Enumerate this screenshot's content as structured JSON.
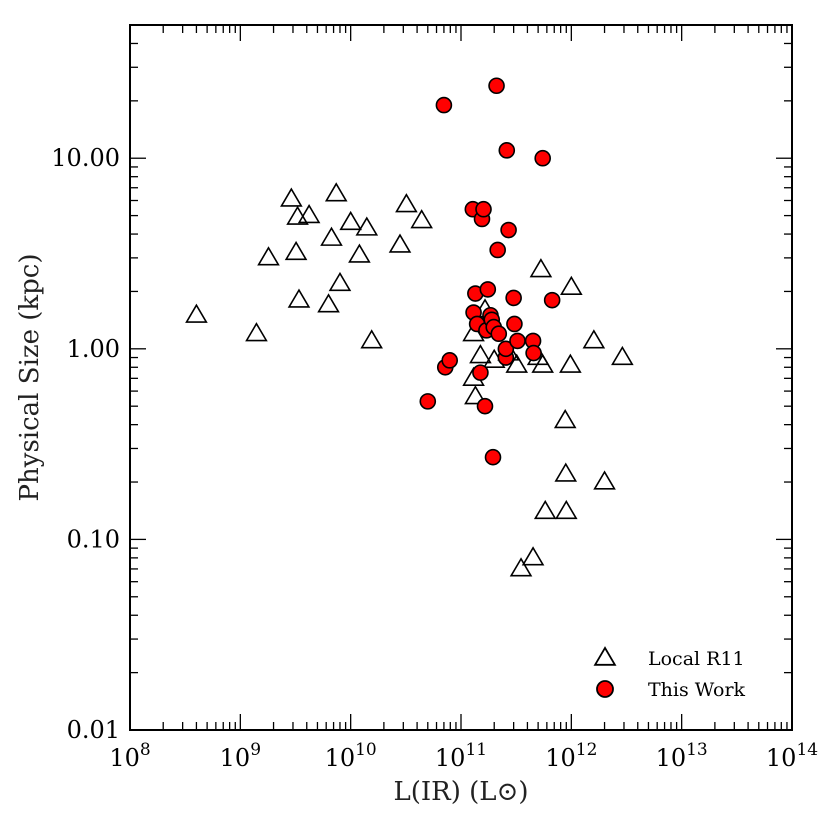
{
  "chart_data": {
    "type": "scatter",
    "title": "",
    "xlabel": "L(IR) (L⊙)",
    "ylabel": "Physical Size (kpc)",
    "xscale": "log",
    "yscale": "log",
    "xlim": [
      100000000.0,
      100000000000000.0
    ],
    "ylim": [
      0.01,
      50
    ],
    "x_ticks": [
      {
        "value": 100000000.0,
        "base": "10",
        "exp": "8"
      },
      {
        "value": 1000000000.0,
        "base": "10",
        "exp": "9"
      },
      {
        "value": 10000000000.0,
        "base": "10",
        "exp": "10"
      },
      {
        "value": 100000000000.0,
        "base": "10",
        "exp": "11"
      },
      {
        "value": 1000000000000.0,
        "base": "10",
        "exp": "12"
      },
      {
        "value": 10000000000000.0,
        "base": "10",
        "exp": "13"
      },
      {
        "value": 100000000000000.0,
        "base": "10",
        "exp": "14"
      }
    ],
    "y_ticks": [
      {
        "value": 0.01,
        "label": "0.01"
      },
      {
        "value": 0.1,
        "label": "0.10"
      },
      {
        "value": 1,
        "label": "1.00"
      },
      {
        "value": 10,
        "label": "10.00"
      }
    ],
    "grid": false,
    "legend_position": "bottom-right",
    "series": [
      {
        "name": "Local R11",
        "marker": "triangle-open",
        "color": "#000000",
        "points": [
          [
            400000000.0,
            1.5
          ],
          [
            1400000000.0,
            1.2
          ],
          [
            1800000000.0,
            3.0
          ],
          [
            2900000000.0,
            6.1
          ],
          [
            3200000000.0,
            3.2
          ],
          [
            3300000000.0,
            4.9
          ],
          [
            3400000000.0,
            1.8
          ],
          [
            4200000000.0,
            5.0
          ],
          [
            6300000000.0,
            1.7
          ],
          [
            6700000000.0,
            3.8
          ],
          [
            7400000000.0,
            6.5
          ],
          [
            8000000000.0,
            2.2
          ],
          [
            10000000000.0,
            4.6
          ],
          [
            12000000000.0,
            3.1
          ],
          [
            14000000000.0,
            4.3
          ],
          [
            15500000000.0,
            1.1
          ],
          [
            28000000000.0,
            3.5
          ],
          [
            32000000000.0,
            5.7
          ],
          [
            44000000000.0,
            4.7
          ],
          [
            130000000000.0,
            1.2
          ],
          [
            130000000000.0,
            0.7
          ],
          [
            135000000000.0,
            0.56
          ],
          [
            150000000000.0,
            0.92
          ],
          [
            165000000000.0,
            1.6
          ],
          [
            200000000000.0,
            0.87
          ],
          [
            270000000000.0,
            0.95
          ],
          [
            320000000000.0,
            0.82
          ],
          [
            350000000000.0,
            0.07
          ],
          [
            450000000000.0,
            0.08
          ],
          [
            500000000000.0,
            0.9
          ],
          [
            530000000000.0,
            2.6
          ],
          [
            550000000000.0,
            0.82
          ],
          [
            580000000000.0,
            0.14
          ],
          [
            880000000000.0,
            0.42
          ],
          [
            890000000000.0,
            0.22
          ],
          [
            900000000000.0,
            0.14
          ],
          [
            980000000000.0,
            0.82
          ],
          [
            1000000000000.0,
            2.1
          ],
          [
            1600000000000.0,
            1.1
          ],
          [
            2000000000000.0,
            0.2
          ],
          [
            2900000000000.0,
            0.9
          ]
        ]
      },
      {
        "name": "This Work",
        "marker": "circle-filled",
        "color": "#ff0000",
        "points": [
          [
            50000000000.0,
            0.53
          ],
          [
            70000000000.0,
            19.0
          ],
          [
            72000000000.0,
            0.8
          ],
          [
            79000000000.0,
            0.87
          ],
          [
            128000000000.0,
            5.4
          ],
          [
            130000000000.0,
            1.55
          ],
          [
            135000000000.0,
            1.95
          ],
          [
            140000000000.0,
            1.35
          ],
          [
            150000000000.0,
            0.75
          ],
          [
            155000000000.0,
            4.8
          ],
          [
            160000000000.0,
            5.4
          ],
          [
            165000000000.0,
            0.5
          ],
          [
            170000000000.0,
            1.25
          ],
          [
            175000000000.0,
            2.05
          ],
          [
            185000000000.0,
            1.5
          ],
          [
            190000000000.0,
            1.42
          ],
          [
            195000000000.0,
            0.27
          ],
          [
            198000000000.0,
            1.3
          ],
          [
            210000000000.0,
            24.0
          ],
          [
            215000000000.0,
            3.3
          ],
          [
            220000000000.0,
            1.2
          ],
          [
            255000000000.0,
            0.9
          ],
          [
            255000000000.0,
            1.0
          ],
          [
            260000000000.0,
            11.0
          ],
          [
            270000000000.0,
            4.2
          ],
          [
            300000000000.0,
            1.85
          ],
          [
            305000000000.0,
            1.35
          ],
          [
            325000000000.0,
            1.1
          ],
          [
            450000000000.0,
            1.1
          ],
          [
            455000000000.0,
            0.95
          ],
          [
            550000000000.0,
            10.0
          ],
          [
            670000000000.0,
            1.8
          ]
        ]
      }
    ]
  }
}
